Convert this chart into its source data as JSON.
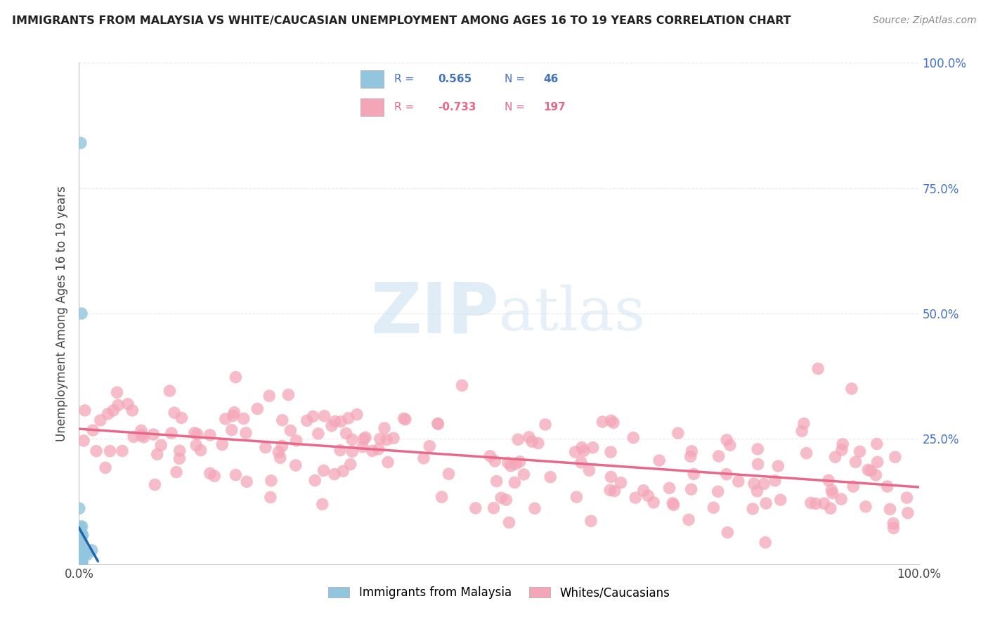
{
  "title": "IMMIGRANTS FROM MALAYSIA VS WHITE/CAUCASIAN UNEMPLOYMENT AMONG AGES 16 TO 19 YEARS CORRELATION CHART",
  "source": "Source: ZipAtlas.com",
  "ylabel": "Unemployment Among Ages 16 to 19 years",
  "xlim": [
    0,
    1.0
  ],
  "ylim": [
    0,
    1.0
  ],
  "blue_R": 0.565,
  "blue_N": 46,
  "pink_R": -0.733,
  "pink_N": 197,
  "blue_color": "#92c5de",
  "pink_color": "#f4a6b8",
  "blue_line_color": "#2166ac",
  "pink_line_color": "#e8688a",
  "right_tick_color": "#4472c4",
  "left_tick_color": "#333333",
  "watermark_color": "#dce9f5",
  "legend_items": [
    "Immigrants from Malaysia",
    "Whites/Caucasians"
  ],
  "xtick_labels": [
    "0.0%",
    "",
    "",
    "",
    "100.0%"
  ],
  "ytick_labels_right": [
    "",
    "25.0%",
    "50.0%",
    "75.0%",
    "100.0%"
  ],
  "grid_color": "#e8e8e8"
}
